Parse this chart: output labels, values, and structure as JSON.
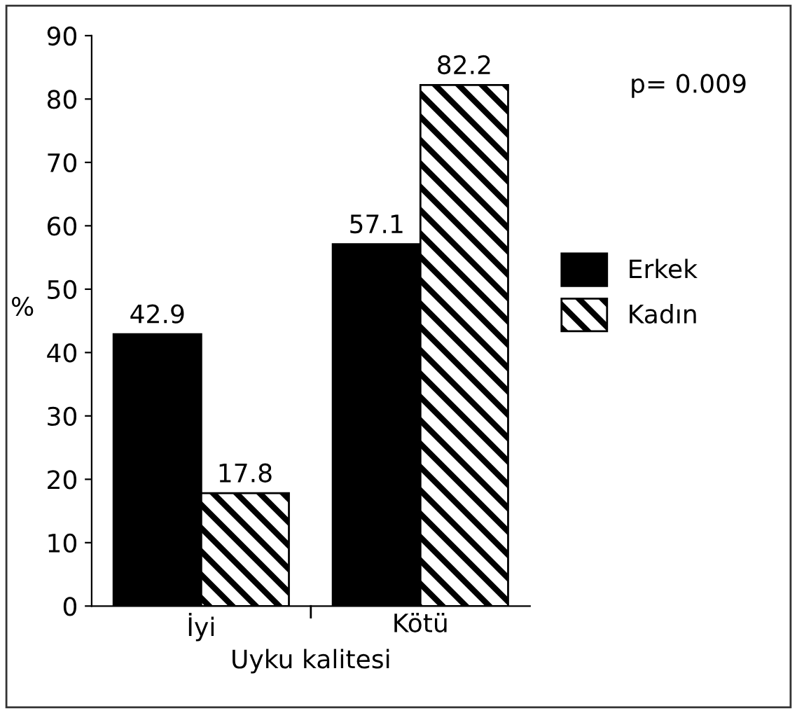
{
  "chart_data": {
    "type": "bar",
    "xlabel": "Uyku kalitesi",
    "ylabel": "%",
    "categories": [
      "İyi",
      "Kötü"
    ],
    "series": [
      {
        "name": "Erkek",
        "color": "#000000",
        "values": [
          42.9,
          57.1
        ]
      },
      {
        "name": "Kadın",
        "color": "#000000",
        "values": [
          17.8,
          82.2
        ]
      }
    ],
    "ylim": [
      0,
      90
    ],
    "yticks": [
      0,
      10,
      20,
      30,
      40,
      50,
      60,
      70,
      80,
      90
    ],
    "data_labels": true,
    "legend": "right",
    "grid": false,
    "annotations": [
      "p= 0.009"
    ]
  }
}
